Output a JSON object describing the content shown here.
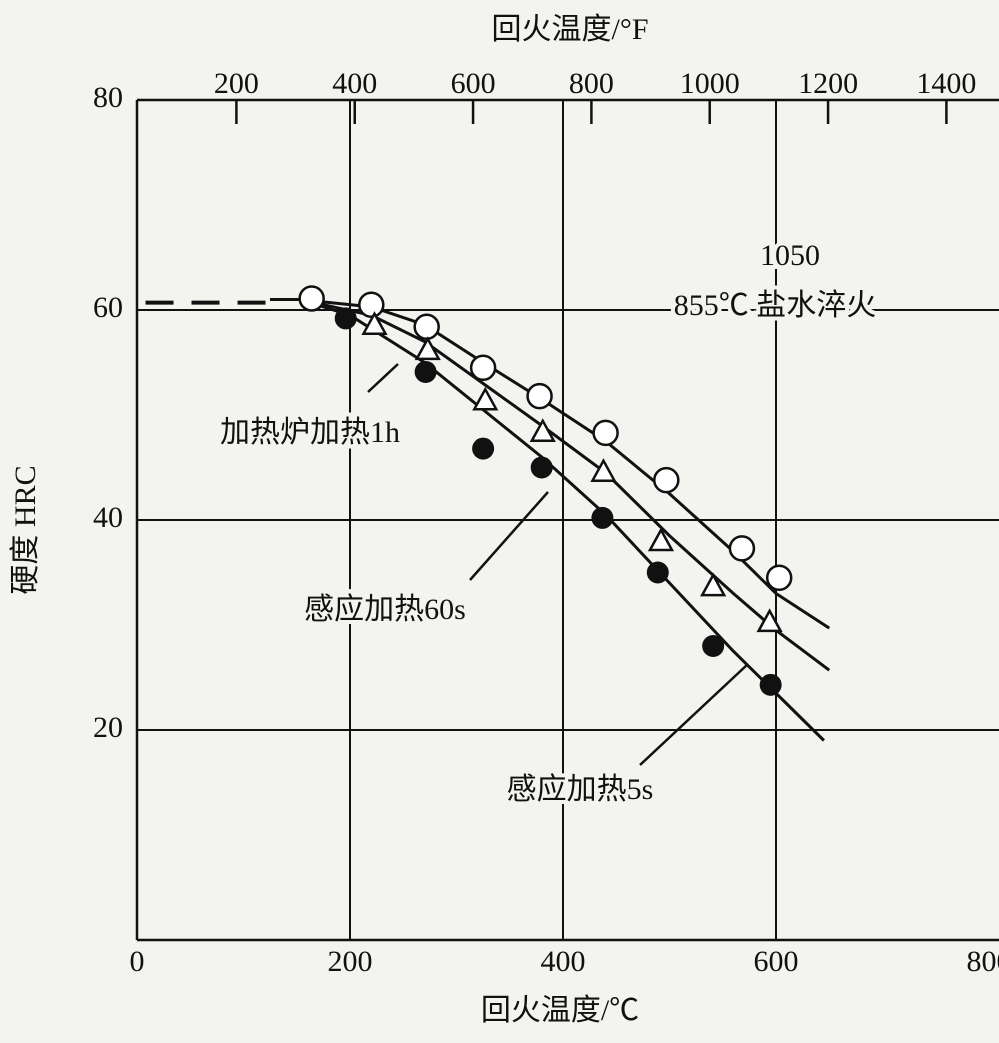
{
  "chart_data": {
    "type": "line",
    "title_top": "回火温度/°F",
    "xlabel": "回火温度/℃",
    "ylabel": "硬度 HRC",
    "xlim": [
      0,
      800
    ],
    "xticks": [
      0,
      200,
      400,
      600,
      800
    ],
    "ylim": [
      0,
      80
    ],
    "yticks": [
      20,
      40,
      60,
      80
    ],
    "x2lim": [
      32,
      1472
    ],
    "x2ticks": [
      200,
      400,
      600,
      800,
      1000,
      1200,
      1400
    ],
    "grid": true,
    "annotations": [
      "1050",
      "855℃ 盐水淬火"
    ],
    "reference": {
      "x": [
        8,
        125
      ],
      "y": [
        60.7,
        60.7
      ],
      "style": "dashed"
    },
    "series": [
      {
        "name": "加热炉加热1h",
        "marker": "open-circle",
        "color": "#111111",
        "x": [
          164,
          220,
          272,
          325,
          378,
          440,
          497,
          568,
          603
        ],
        "y": [
          61.1,
          60.5,
          58.4,
          54.5,
          51.8,
          48.3,
          43.8,
          37.3,
          34.5
        ],
        "curve": {
          "x": [
            125,
            153,
            220,
            270,
            325,
            380,
            440,
            500,
            560,
            600,
            650
          ],
          "y": [
            61,
            61,
            60.3,
            58.6,
            55,
            51.5,
            47.5,
            42.5,
            37,
            33,
            29.7
          ]
        }
      },
      {
        "name": "感应加热60s",
        "marker": "open-triangle",
        "color": "#111111",
        "x": [
          223,
          273,
          327,
          381,
          438,
          492,
          541,
          594
        ],
        "y": [
          58.6,
          56.2,
          51.4,
          48.4,
          44.6,
          38,
          33.7,
          30.3
        ],
        "curve": {
          "x": [
            125,
            153,
            220,
            270,
            325,
            380,
            440,
            500,
            560,
            600,
            650
          ],
          "y": [
            61,
            61,
            59.5,
            57,
            53,
            49,
            44.5,
            38.5,
            33,
            29.5,
            25.7
          ]
        }
      },
      {
        "name": "感应加热5s",
        "marker": "filled-circle",
        "color": "#111111",
        "x": [
          196,
          271,
          325,
          380,
          437,
          489,
          541,
          595
        ],
        "y": [
          59.2,
          54.1,
          46.8,
          45,
          40.2,
          35,
          28,
          24.3
        ],
        "curve": {
          "x": [
            125,
            153,
            200,
            270,
            325,
            380,
            440,
            500,
            560,
            600,
            645
          ],
          "y": [
            61,
            61,
            59.5,
            55,
            50.5,
            46,
            40.5,
            34,
            27.5,
            23.5,
            19
          ]
        }
      }
    ]
  }
}
